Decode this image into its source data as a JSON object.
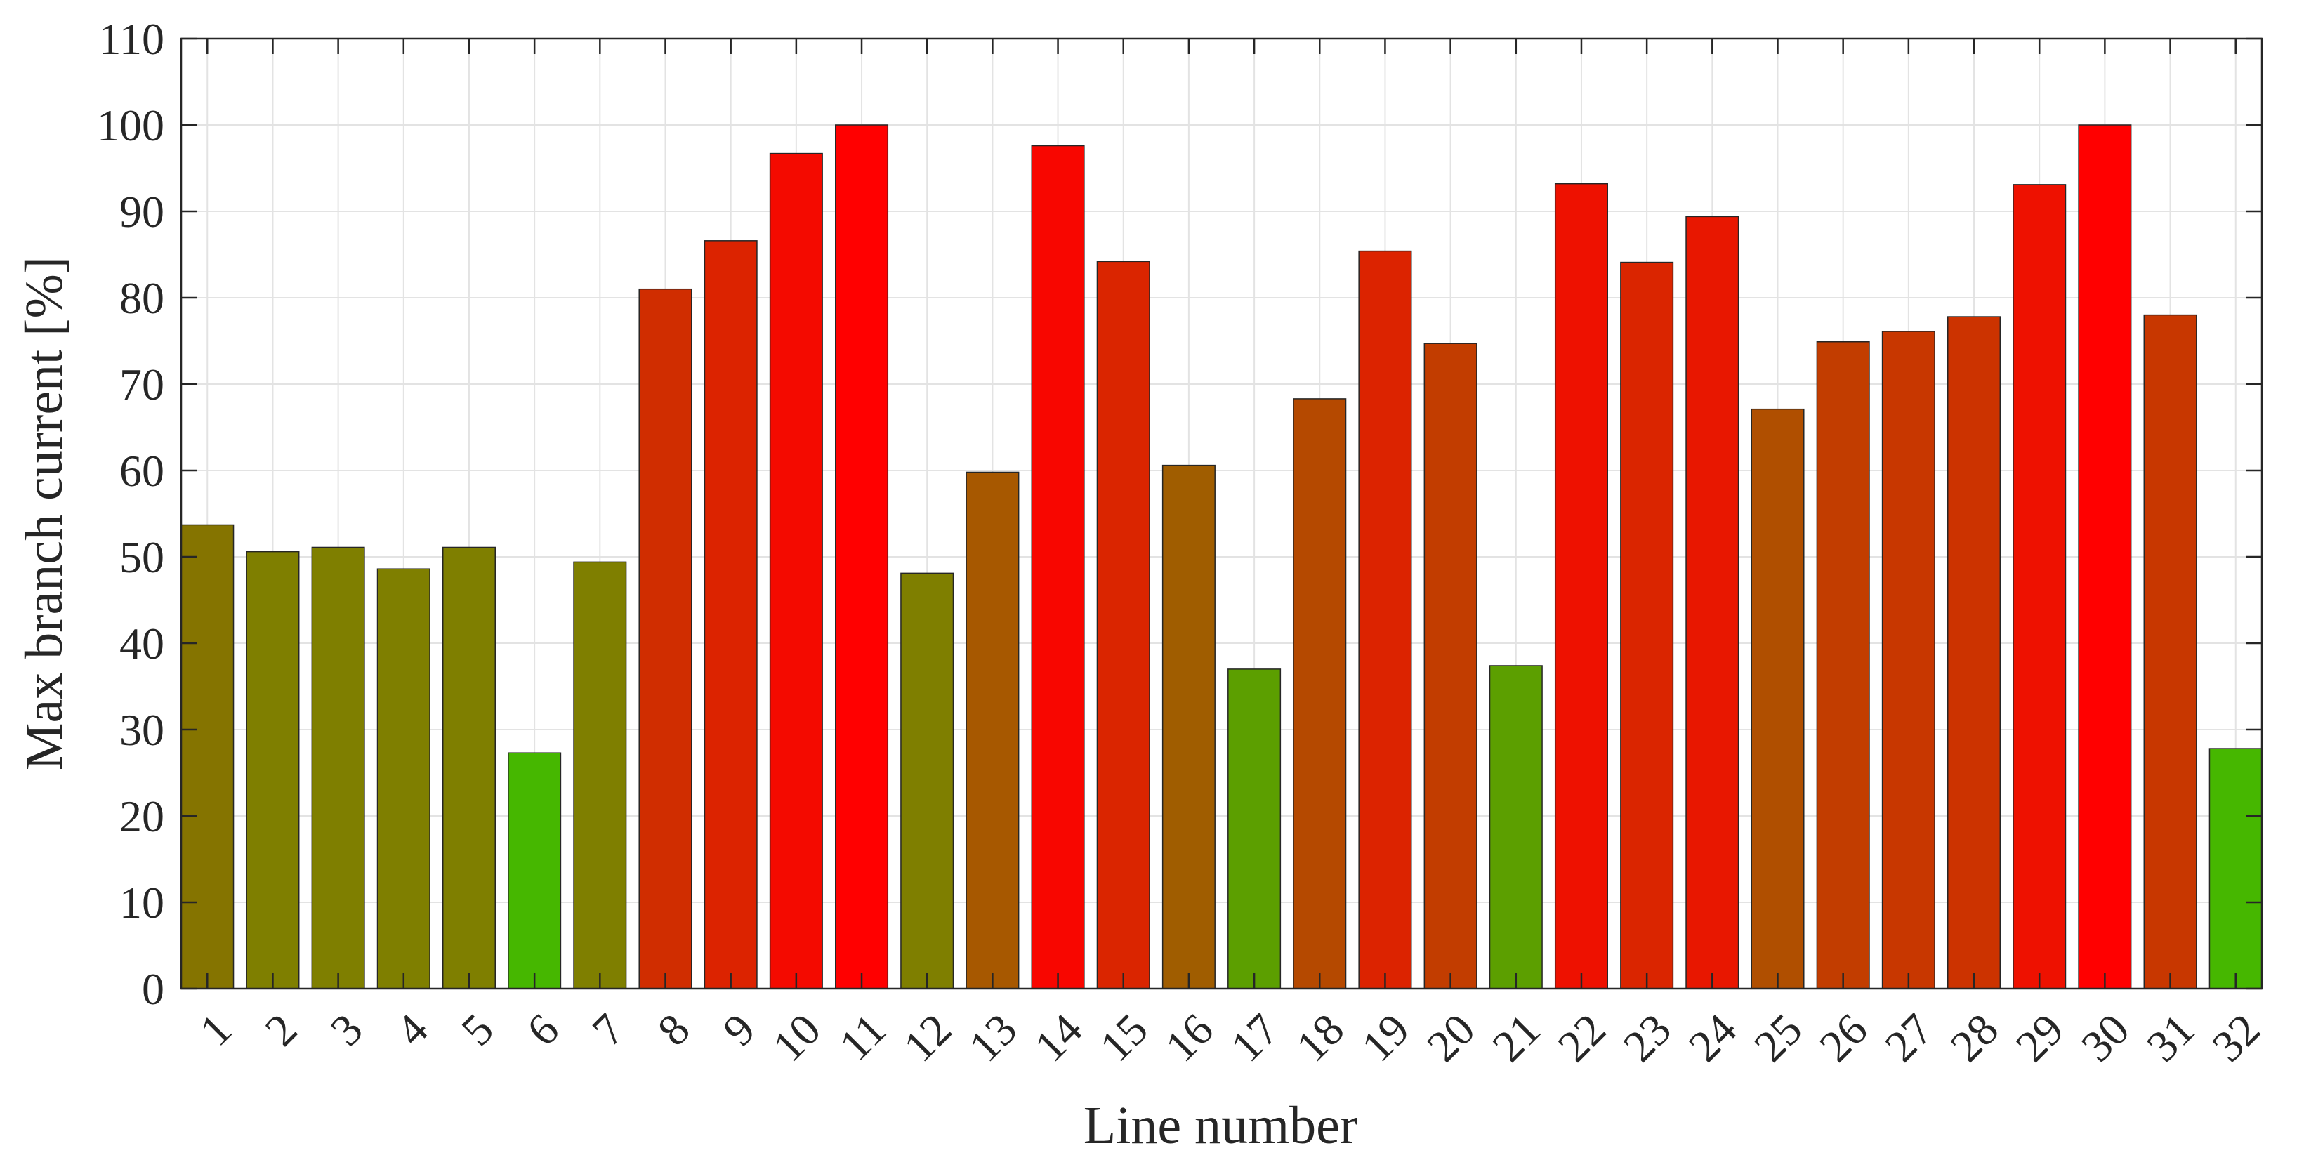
{
  "chart_data": {
    "type": "bar",
    "title": "",
    "xlabel": "Line number",
    "ylabel": "Max branch current [%]",
    "ylim": [
      0,
      110
    ],
    "yticks": [
      0,
      10,
      20,
      30,
      40,
      50,
      60,
      70,
      80,
      90,
      100,
      110
    ],
    "grid": true,
    "categories": [
      "1",
      "2",
      "3",
      "4",
      "5",
      "6",
      "7",
      "8",
      "9",
      "10",
      "11",
      "12",
      "13",
      "14",
      "15",
      "16",
      "17",
      "18",
      "19",
      "20",
      "21",
      "22",
      "23",
      "24",
      "25",
      "26",
      "27",
      "28",
      "29",
      "30",
      "31",
      "32"
    ],
    "values": [
      53.7,
      50.6,
      51.1,
      48.6,
      51.1,
      27.3,
      49.4,
      81.0,
      86.6,
      96.7,
      100.0,
      48.1,
      59.8,
      97.6,
      84.2,
      60.6,
      37.0,
      68.3,
      85.4,
      74.7,
      37.4,
      93.2,
      84.1,
      89.4,
      67.1,
      74.9,
      76.1,
      77.8,
      93.1,
      100.0,
      78.0,
      27.8
    ],
    "colors": [
      "#857400",
      "#7f7f00",
      "#7f7f00",
      "#7f7f00",
      "#7f7f00",
      "#46b700",
      "#7f7f00",
      "#d02d00",
      "#dc2300",
      "#f40a00",
      "#ff0000",
      "#7f7f00",
      "#a75800",
      "#f80600",
      "#da2500",
      "#a05d00",
      "#5c9f00",
      "#b54900",
      "#dc2300",
      "#c23d00",
      "#5c9f00",
      "#ee1100",
      "#da2500",
      "#e81700",
      "#b04f00",
      "#c23d00",
      "#c83700",
      "#cc3300",
      "#ee1100",
      "#ff0000",
      "#c83700",
      "#46b700"
    ]
  }
}
